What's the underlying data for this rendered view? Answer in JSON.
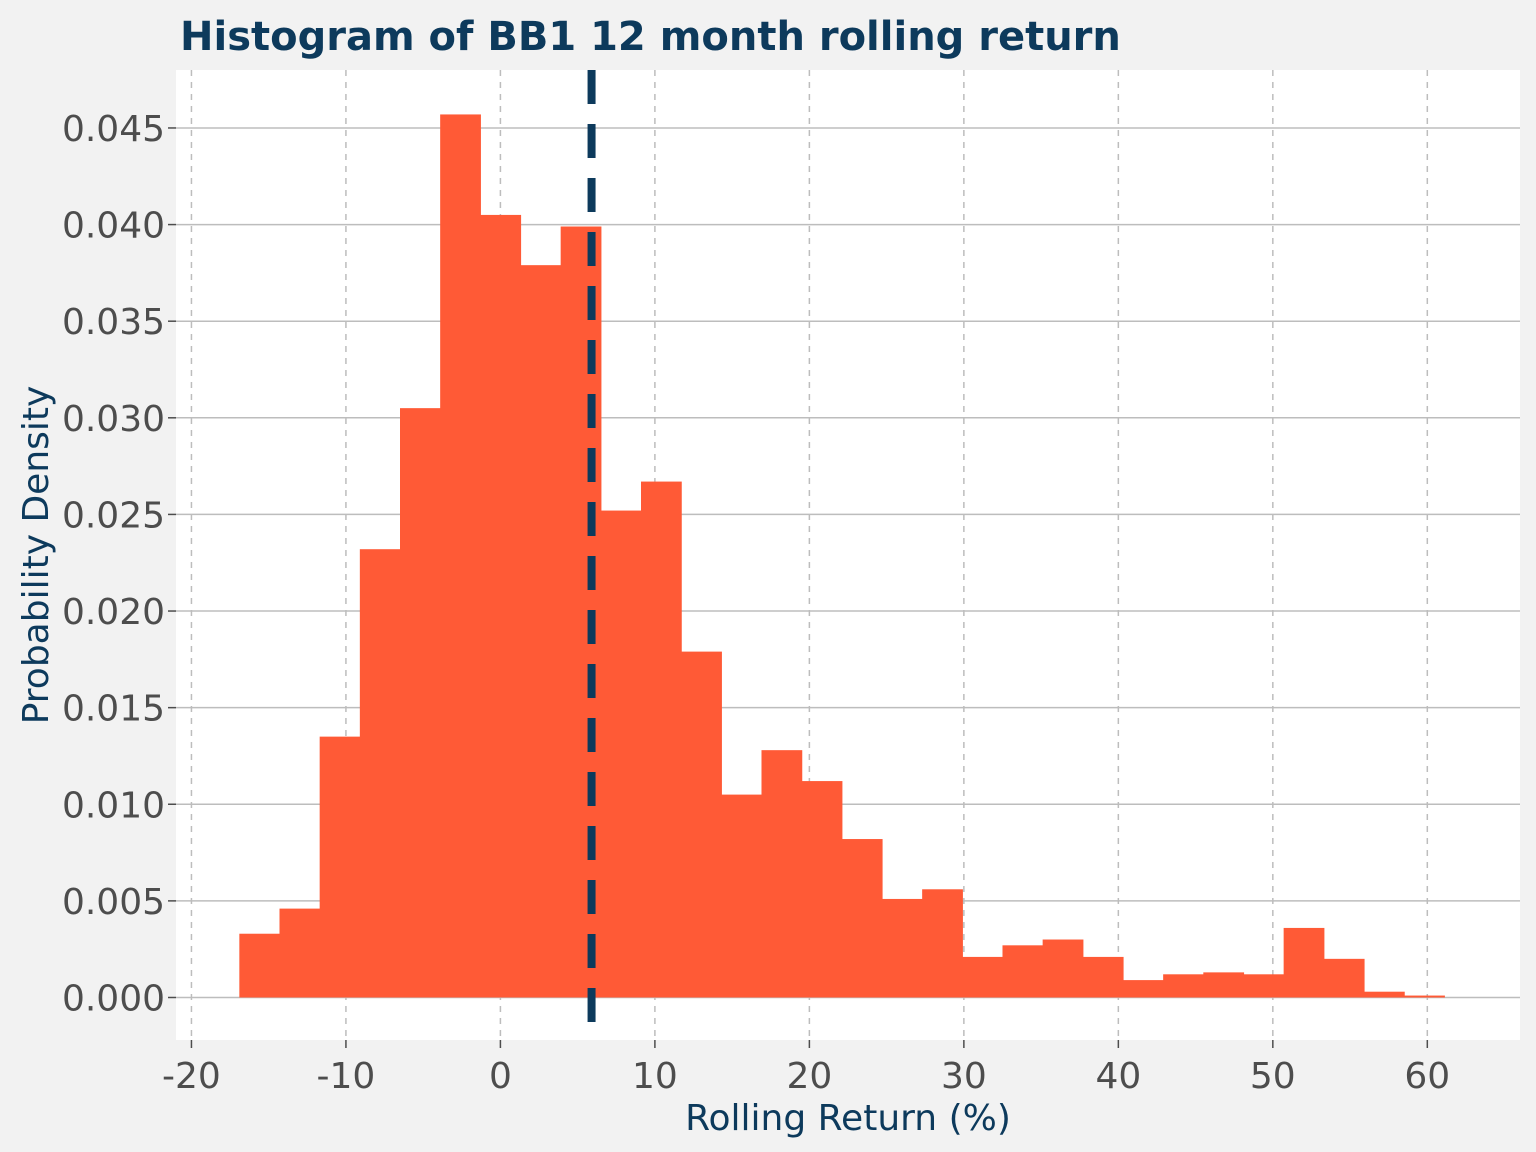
{
  "chart_data": {
    "type": "bar",
    "title": "Histogram of BB1 12 month rolling return",
    "xlabel": "Rolling Return (%)",
    "ylabel": "Probability Density",
    "xlim": [
      -21,
      66
    ],
    "ylim": [
      -0.0022,
      0.048
    ],
    "xticks": [
      -20,
      -10,
      0,
      10,
      20,
      30,
      40,
      50,
      60
    ],
    "xtick_labels": [
      "-20",
      "-10",
      "0",
      "10",
      "20",
      "30",
      "40",
      "50",
      "60"
    ],
    "yticks": [
      0.0,
      0.005,
      0.01,
      0.015,
      0.02,
      0.025,
      0.03,
      0.035,
      0.04,
      0.045
    ],
    "ytick_labels": [
      "0.000",
      "0.005",
      "0.010",
      "0.015",
      "0.020",
      "0.025",
      "0.030",
      "0.035",
      "0.040",
      "0.045"
    ],
    "bins": [
      {
        "x0": -16.9,
        "x1": -14.3,
        "density": 0.0033
      },
      {
        "x0": -14.3,
        "x1": -11.7,
        "density": 0.0046
      },
      {
        "x0": -11.7,
        "x1": -9.1,
        "density": 0.0135
      },
      {
        "x0": -9.1,
        "x1": -6.5,
        "density": 0.0232
      },
      {
        "x0": -6.5,
        "x1": -3.9,
        "density": 0.0305
      },
      {
        "x0": -3.9,
        "x1": -1.3,
        "density": 0.0457
      },
      {
        "x0": -1.3,
        "x1": 1.3,
        "density": 0.0405
      },
      {
        "x0": 1.3,
        "x1": 3.9,
        "density": 0.0379
      },
      {
        "x0": 3.9,
        "x1": 6.5,
        "density": 0.0399
      },
      {
        "x0": 6.5,
        "x1": 9.1,
        "density": 0.0252
      },
      {
        "x0": 9.1,
        "x1": 11.7,
        "density": 0.0267
      },
      {
        "x0": 11.7,
        "x1": 14.3,
        "density": 0.0179
      },
      {
        "x0": 14.3,
        "x1": 16.9,
        "density": 0.0105
      },
      {
        "x0": 16.9,
        "x1": 19.5,
        "density": 0.0128
      },
      {
        "x0": 19.5,
        "x1": 22.1,
        "density": 0.0112
      },
      {
        "x0": 22.1,
        "x1": 24.7,
        "density": 0.0082
      },
      {
        "x0": 24.7,
        "x1": 27.3,
        "density": 0.0051
      },
      {
        "x0": 27.3,
        "x1": 29.9,
        "density": 0.0056
      },
      {
        "x0": 29.9,
        "x1": 32.5,
        "density": 0.0021
      },
      {
        "x0": 32.5,
        "x1": 35.1,
        "density": 0.0027
      },
      {
        "x0": 35.1,
        "x1": 37.7,
        "density": 0.003
      },
      {
        "x0": 37.7,
        "x1": 40.3,
        "density": 0.0021
      },
      {
        "x0": 40.3,
        "x1": 42.9,
        "density": 0.0009
      },
      {
        "x0": 42.9,
        "x1": 45.5,
        "density": 0.0012
      },
      {
        "x0": 45.5,
        "x1": 48.1,
        "density": 0.0013
      },
      {
        "x0": 48.1,
        "x1": 50.7,
        "density": 0.0012
      },
      {
        "x0": 50.7,
        "x1": 53.3,
        "density": 0.0036
      },
      {
        "x0": 53.3,
        "x1": 55.9,
        "density": 0.002
      },
      {
        "x0": 55.9,
        "x1": 58.5,
        "density": 0.0003
      },
      {
        "x0": 58.5,
        "x1": 61.1,
        "density": 0.0001
      }
    ],
    "mean_line": {
      "x": 5.9,
      "style": "dashed"
    },
    "grid": true,
    "colors": {
      "bar": "#ff5a36",
      "mean_line": "#0d3a5c",
      "title": "#0d3a5c",
      "axis_label": "#0d3a5c",
      "tick_label": "#4d4d4d",
      "panel_background": "#ffffff",
      "figure_background": "#f2f2f2",
      "grid_major": "#bdbdbd",
      "grid_minor": "#bdbdbd"
    }
  }
}
